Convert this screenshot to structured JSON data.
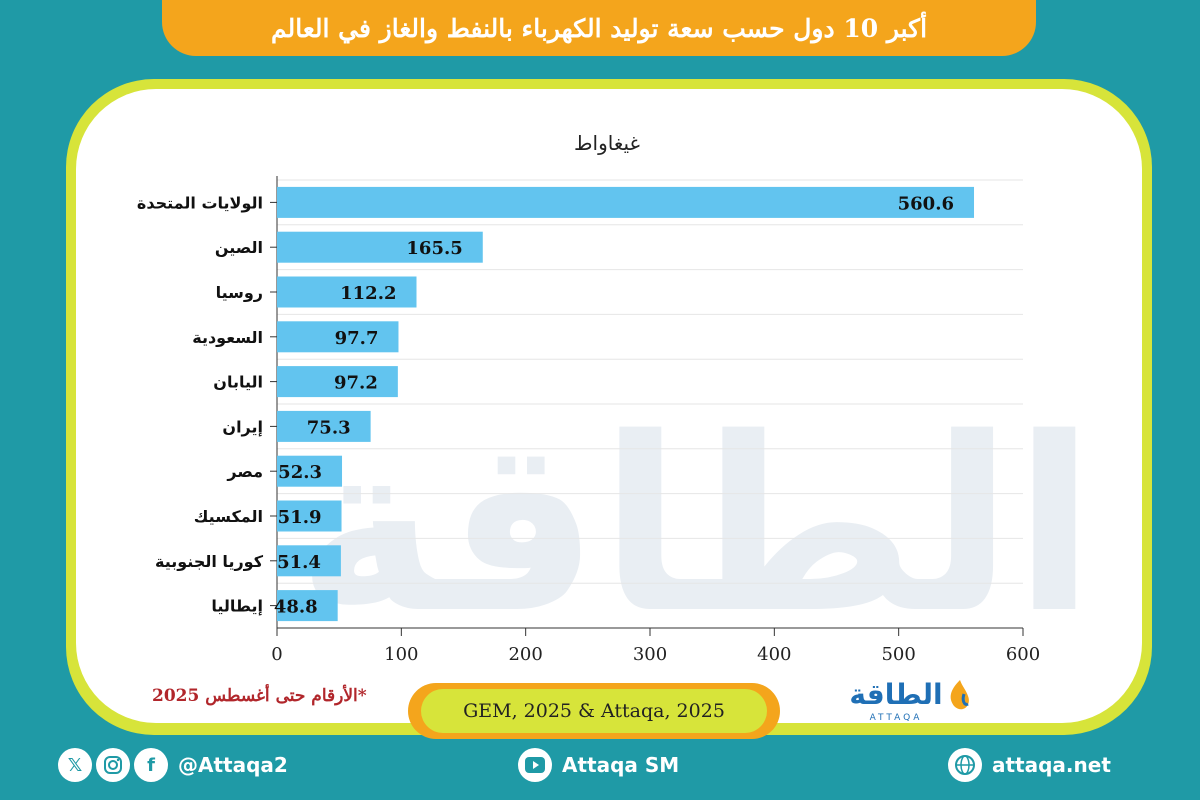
{
  "title": "أكبر 10 دول حسب سعة توليد الكهرباء بالنفط والغاز في العالم",
  "note": "*الأرقام حتى أغسطس 2025",
  "source": "GEM, 2025 & Attaqa, 2025",
  "logo": {
    "arabic": "الطاقة",
    "latin": "ATTAQA"
  },
  "watermark": "الطاقة",
  "footer": {
    "social_handle": "@Attaqa2",
    "youtube": "Attaqa SM",
    "website": "attaqa.net",
    "icons": [
      "x-icon",
      "instagram-icon",
      "facebook-icon",
      "youtube-icon",
      "globe-icon"
    ]
  },
  "colors": {
    "bar": "#62c4ef",
    "accent": "#f4a51c",
    "frame": "#d7e43a",
    "background": "#1f9aa6",
    "note": "#b1262b"
  },
  "chart_data": {
    "type": "bar",
    "orientation": "horizontal",
    "unit_label": "غيغاواط",
    "categories": [
      "الولايات المتحدة",
      "الصين",
      "روسيا",
      "السعودية",
      "اليابان",
      "إيران",
      "مصر",
      "المكسيك",
      "كوريا الجنوبية",
      "إيطاليا"
    ],
    "values": [
      560.6,
      165.5,
      112.2,
      97.7,
      97.2,
      75.3,
      52.3,
      51.9,
      51.4,
      48.8
    ],
    "value_labels": [
      "560.6",
      "165.5",
      "112.2",
      "97.7",
      "97.2",
      "75.3",
      "52.3",
      "51.9",
      "51.4",
      "48.8"
    ],
    "xlim": [
      0,
      600
    ],
    "xticks": [
      0,
      100,
      200,
      300,
      400,
      500,
      600
    ],
    "grid": true
  }
}
